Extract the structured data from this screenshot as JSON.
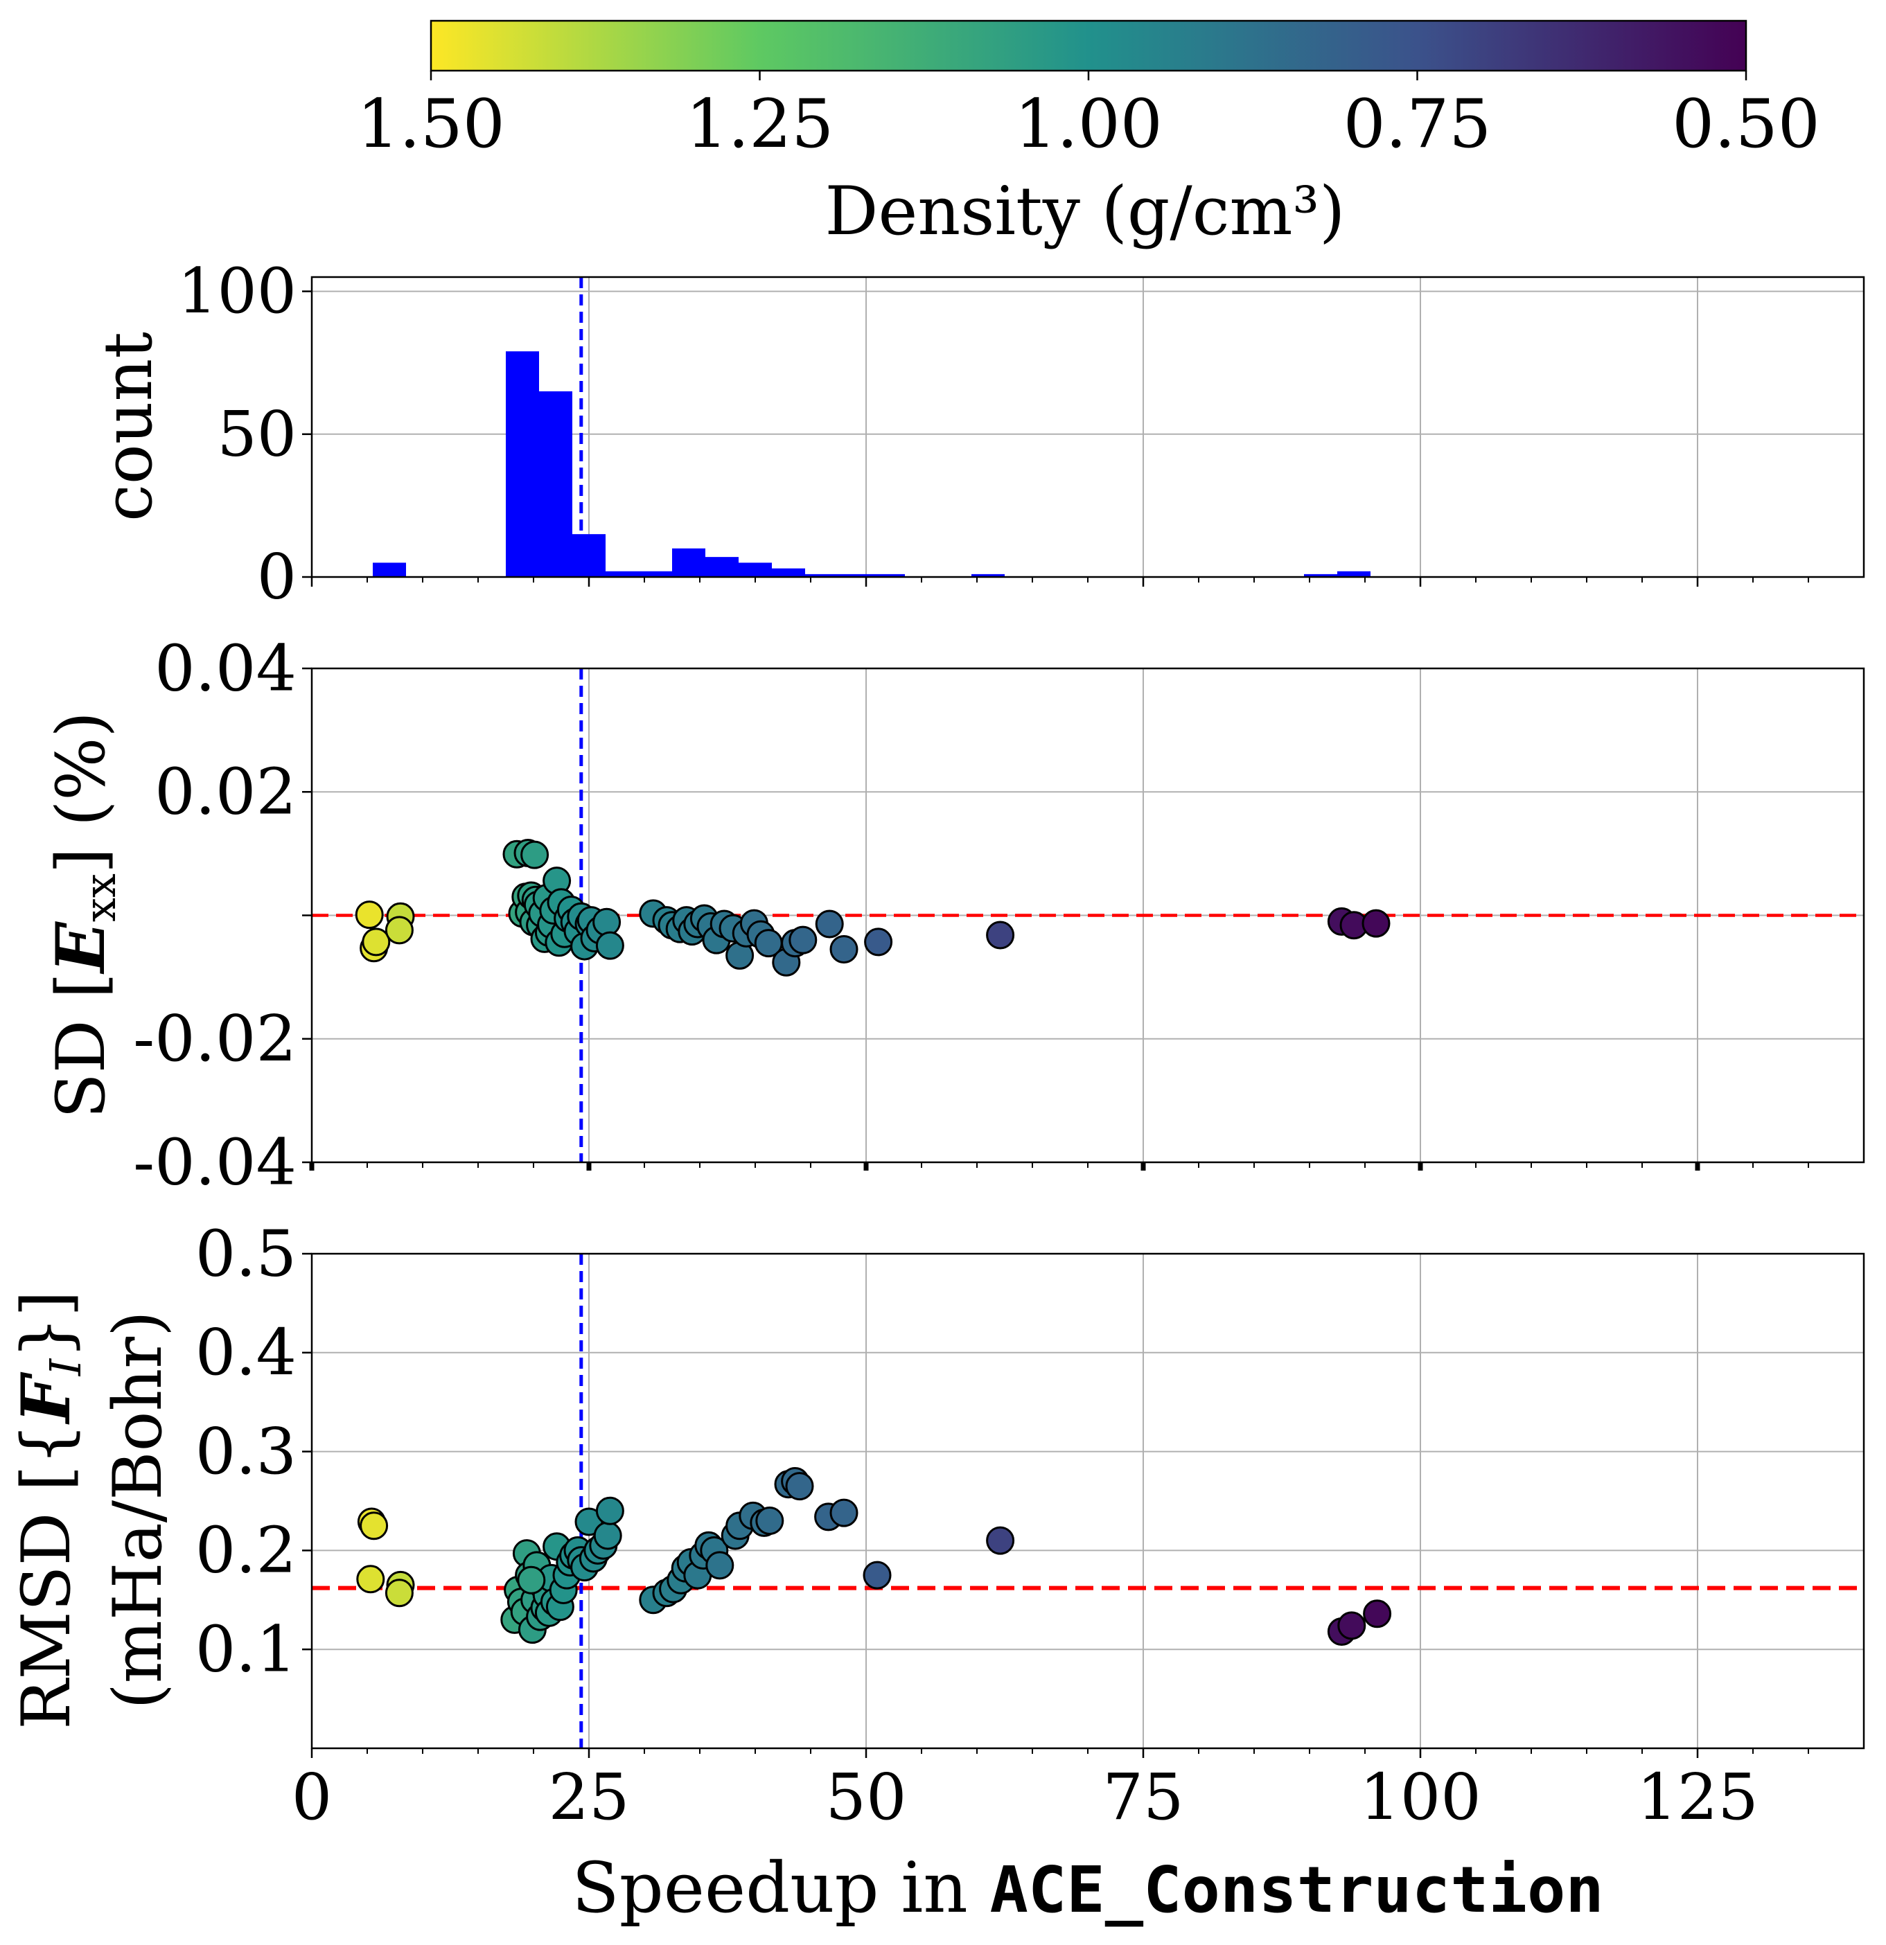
{
  "colorbar": {
    "label": "Density (g/cm³)",
    "ticks": [
      "1.50",
      "1.25",
      "1.00",
      "0.75",
      "0.50"
    ],
    "range": [
      1.5,
      0.5
    ],
    "colormap": "viridis_r"
  },
  "xaxis": {
    "label_prefix": "Speedup in ",
    "label_code": "ACE_Construction",
    "ticks": [
      "0",
      "25",
      "50",
      "75",
      "100",
      "125"
    ],
    "range": [
      0,
      140
    ]
  },
  "colors": {
    "histogram": "#0000ff",
    "mean_line": "#0000ff",
    "reference_line": "#ff0000",
    "grid": "#b0b0b0"
  },
  "chart_data": [
    {
      "type": "bar",
      "panel": "histogram",
      "ylabel": "count",
      "ylim": [
        0,
        105
      ],
      "yticks": [
        "0",
        "50",
        "100"
      ],
      "bin_width": 3,
      "bins": [
        {
          "x0": 5.5,
          "count": 5
        },
        {
          "x0": 17.5,
          "count": 79
        },
        {
          "x0": 20.5,
          "count": 65
        },
        {
          "x0": 23.5,
          "count": 15
        },
        {
          "x0": 26.5,
          "count": 2
        },
        {
          "x0": 29.5,
          "count": 2
        },
        {
          "x0": 32.5,
          "count": 10
        },
        {
          "x0": 35.5,
          "count": 7
        },
        {
          "x0": 38.5,
          "count": 5
        },
        {
          "x0": 41.5,
          "count": 3
        },
        {
          "x0": 44.5,
          "count": 1
        },
        {
          "x0": 47.5,
          "count": 1
        },
        {
          "x0": 50.5,
          "count": 1
        },
        {
          "x0": 59.5,
          "count": 1
        },
        {
          "x0": 89.5,
          "count": 1
        },
        {
          "x0": 92.5,
          "count": 2
        }
      ],
      "mean_speedup": 24.3,
      "grid": true
    },
    {
      "type": "scatter",
      "panel": "energy",
      "ylabel_prefix": "SD",
      "ylabel_var": "E",
      "ylabel_sub": "xx",
      "ylabel_unit": "(%)",
      "ylim": [
        -0.04,
        0.04
      ],
      "yticks": [
        "0.04",
        "0.02",
        "-0.02",
        "-0.04"
      ],
      "ytick_values": [
        0.04,
        0.02,
        -0.02,
        -0.04
      ],
      "reference_y": 0.0,
      "mean_speedup": 24.3,
      "grid": true,
      "points": [
        [
          5.2,
          0.0001,
          1.47
        ],
        [
          5.6,
          -0.0053,
          1.46
        ],
        [
          5.8,
          -0.0043,
          1.45
        ],
        [
          8.0,
          -0.0002,
          1.41
        ],
        [
          7.9,
          -0.0024,
          1.42
        ],
        [
          18.5,
          0.0099,
          1.07
        ],
        [
          19.5,
          0.0101,
          1.06
        ],
        [
          20.1,
          0.0098,
          1.05
        ],
        [
          19.0,
          0.0003,
          1.08
        ],
        [
          19.3,
          0.003,
          1.08
        ],
        [
          19.6,
          0.0005,
          1.07
        ],
        [
          19.8,
          0.0032,
          1.06
        ],
        [
          20.0,
          -0.0011,
          1.05
        ],
        [
          20.2,
          0.0025,
          1.05
        ],
        [
          20.4,
          0.0017,
          1.04
        ],
        [
          20.6,
          -0.0016,
          1.04
        ],
        [
          20.8,
          0.0003,
          1.03
        ],
        [
          21.0,
          -0.0038,
          1.03
        ],
        [
          21.2,
          0.0028,
          1.03
        ],
        [
          21.4,
          -0.0028,
          1.03
        ],
        [
          21.6,
          -0.0015,
          1.02
        ],
        [
          21.8,
          0.0008,
          1.02
        ],
        [
          22.1,
          0.0056,
          1.02
        ],
        [
          22.3,
          -0.0044,
          1.01
        ],
        [
          22.5,
          0.0021,
          1.01
        ],
        [
          22.8,
          -0.003,
          1.01
        ],
        [
          23.1,
          -0.0005,
          1.0
        ],
        [
          23.4,
          0.0009,
          1.0
        ],
        [
          23.7,
          -0.0011,
          0.99
        ],
        [
          24.0,
          -0.0026,
          0.99
        ],
        [
          24.3,
          -0.0002,
          0.98
        ],
        [
          24.6,
          -0.005,
          0.98
        ],
        [
          25.0,
          -0.0014,
          0.97
        ],
        [
          25.2,
          -0.0008,
          0.97
        ],
        [
          25.5,
          -0.0037,
          0.97
        ],
        [
          26.0,
          -0.0024,
          0.96
        ],
        [
          26.6,
          -0.0011,
          0.96
        ],
        [
          26.9,
          -0.0049,
          0.96
        ],
        [
          30.8,
          0.0003,
          0.93
        ],
        [
          32.0,
          -0.0008,
          0.93
        ],
        [
          32.5,
          -0.0016,
          0.92
        ],
        [
          33.2,
          -0.0022,
          0.92
        ],
        [
          33.8,
          -0.0008,
          0.91
        ],
        [
          34.3,
          -0.0026,
          0.91
        ],
        [
          34.8,
          -0.0014,
          0.9
        ],
        [
          35.4,
          -0.0005,
          0.9
        ],
        [
          36.0,
          -0.0018,
          0.89
        ],
        [
          36.5,
          -0.004,
          0.89
        ],
        [
          37.2,
          -0.0014,
          0.88
        ],
        [
          38.0,
          -0.0021,
          0.88
        ],
        [
          38.6,
          -0.0065,
          0.87
        ],
        [
          39.2,
          -0.0029,
          0.87
        ],
        [
          39.9,
          -0.0013,
          0.86
        ],
        [
          40.5,
          -0.0031,
          0.86
        ],
        [
          41.2,
          -0.0045,
          0.85
        ],
        [
          42.8,
          -0.0076,
          0.84
        ],
        [
          43.6,
          -0.0045,
          0.84
        ],
        [
          44.3,
          -0.004,
          0.83
        ],
        [
          46.7,
          -0.0014,
          0.82
        ],
        [
          48.0,
          -0.0055,
          0.82
        ],
        [
          51.1,
          -0.0043,
          0.78
        ],
        [
          62.1,
          -0.0032,
          0.7
        ],
        [
          92.9,
          -0.001,
          0.54
        ],
        [
          94.0,
          -0.0016,
          0.53
        ],
        [
          96.0,
          -0.0013,
          0.52
        ]
      ]
    },
    {
      "type": "scatter",
      "panel": "forces",
      "ylabel_line1_prefix": "RMSD",
      "ylabel_line1_var": "F",
      "ylabel_line1_sub": "I",
      "ylabel_line2": "(mHa/Bohr)",
      "ylim": [
        0.0,
        0.5
      ],
      "yticks": [
        "0.1",
        "0.2",
        "0.3",
        "0.4",
        "0.5"
      ],
      "ytick_values": [
        0.1,
        0.2,
        0.3,
        0.4,
        0.5
      ],
      "reference_y": 0.162,
      "mean_speedup": 24.3,
      "grid": true,
      "points": [
        [
          5.4,
          0.229,
          1.47
        ],
        [
          5.6,
          0.225,
          1.46
        ],
        [
          5.3,
          0.171,
          1.45
        ],
        [
          8.0,
          0.165,
          1.41
        ],
        [
          7.9,
          0.157,
          1.42
        ],
        [
          18.3,
          0.13,
          1.08
        ],
        [
          18.6,
          0.16,
          1.08
        ],
        [
          18.9,
          0.148,
          1.07
        ],
        [
          19.2,
          0.138,
          1.07
        ],
        [
          19.4,
          0.197,
          1.06
        ],
        [
          19.6,
          0.175,
          1.06
        ],
        [
          19.9,
          0.12,
          1.05
        ],
        [
          20.1,
          0.15,
          1.05
        ],
        [
          20.3,
          0.185,
          1.05
        ],
        [
          20.6,
          0.133,
          1.04
        ],
        [
          20.8,
          0.165,
          1.04
        ],
        [
          21.0,
          0.142,
          1.03
        ],
        [
          21.2,
          0.155,
          1.03
        ],
        [
          21.4,
          0.137,
          1.03
        ],
        [
          21.6,
          0.172,
          1.02
        ],
        [
          21.9,
          0.148,
          1.02
        ],
        [
          22.1,
          0.204,
          1.02
        ],
        [
          22.4,
          0.143,
          1.01
        ],
        [
          22.7,
          0.16,
          1.01
        ],
        [
          23.0,
          0.175,
          1.0
        ],
        [
          23.3,
          0.188,
          1.0
        ],
        [
          23.6,
          0.195,
          0.99
        ],
        [
          24.0,
          0.2,
          0.99
        ],
        [
          24.3,
          0.19,
          0.98
        ],
        [
          24.6,
          0.183,
          0.98
        ],
        [
          25.0,
          0.229,
          0.97
        ],
        [
          25.4,
          0.192,
          0.97
        ],
        [
          25.8,
          0.2,
          0.97
        ],
        [
          26.3,
          0.205,
          0.96
        ],
        [
          26.7,
          0.215,
          0.96
        ],
        [
          26.9,
          0.24,
          0.96
        ],
        [
          19.8,
          0.17,
          1.06
        ],
        [
          30.8,
          0.15,
          0.93
        ],
        [
          32.0,
          0.157,
          0.93
        ],
        [
          32.6,
          0.161,
          0.92
        ],
        [
          33.3,
          0.17,
          0.92
        ],
        [
          33.7,
          0.182,
          0.91
        ],
        [
          34.2,
          0.188,
          0.91
        ],
        [
          34.8,
          0.175,
          0.9
        ],
        [
          35.3,
          0.195,
          0.9
        ],
        [
          35.8,
          0.205,
          0.89
        ],
        [
          36.3,
          0.2,
          0.89
        ],
        [
          36.8,
          0.185,
          0.88
        ],
        [
          38.2,
          0.215,
          0.88
        ],
        [
          38.6,
          0.225,
          0.87
        ],
        [
          39.8,
          0.235,
          0.86
        ],
        [
          40.8,
          0.228,
          0.86
        ],
        [
          41.3,
          0.23,
          0.85
        ],
        [
          43.0,
          0.267,
          0.84
        ],
        [
          43.6,
          0.27,
          0.84
        ],
        [
          44.0,
          0.265,
          0.83
        ],
        [
          46.6,
          0.234,
          0.82
        ],
        [
          48.0,
          0.238,
          0.82
        ],
        [
          51.0,
          0.175,
          0.78
        ],
        [
          62.1,
          0.21,
          0.7
        ],
        [
          92.9,
          0.118,
          0.54
        ],
        [
          93.8,
          0.124,
          0.53
        ],
        [
          96.1,
          0.136,
          0.52
        ]
      ]
    }
  ]
}
